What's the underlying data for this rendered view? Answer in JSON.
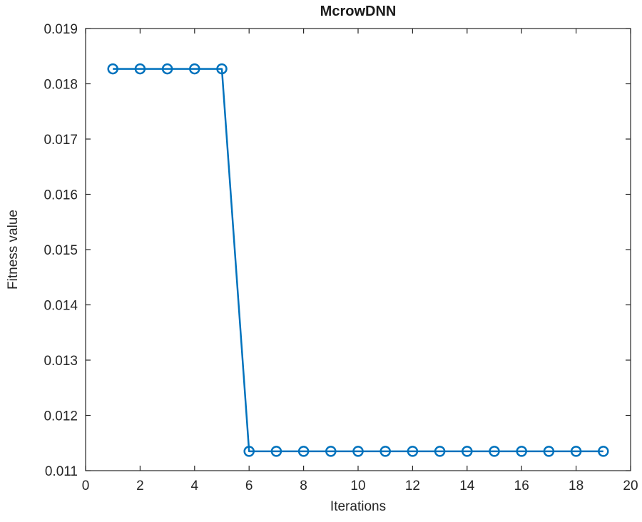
{
  "chart_data": {
    "type": "line",
    "title": "McrowDNN",
    "xlabel": "Iterations",
    "ylabel": "Fitness value",
    "xlim": [
      0,
      20
    ],
    "ylim": [
      0.011,
      0.019
    ],
    "xticks": [
      0,
      2,
      4,
      6,
      8,
      10,
      12,
      14,
      16,
      18,
      20
    ],
    "yticks": [
      0.011,
      0.012,
      0.013,
      0.014,
      0.015,
      0.016,
      0.017,
      0.018,
      0.019
    ],
    "ytick_decimals": 3,
    "grid": false,
    "legend_position": "none",
    "axes_color": "#262626",
    "series": [
      {
        "name": "fitness-curve",
        "color": "#0072BD",
        "marker": "circle",
        "line_width": 2.5,
        "x": [
          1,
          2,
          3,
          4,
          5,
          6,
          7,
          8,
          9,
          10,
          11,
          12,
          13,
          14,
          15,
          16,
          17,
          18,
          19
        ],
        "y": [
          0.01827,
          0.01827,
          0.01827,
          0.01827,
          0.01827,
          0.01135,
          0.01135,
          0.01135,
          0.01135,
          0.01135,
          0.01135,
          0.01135,
          0.01135,
          0.01135,
          0.01135,
          0.01135,
          0.01135,
          0.01135,
          0.01135
        ]
      }
    ]
  }
}
